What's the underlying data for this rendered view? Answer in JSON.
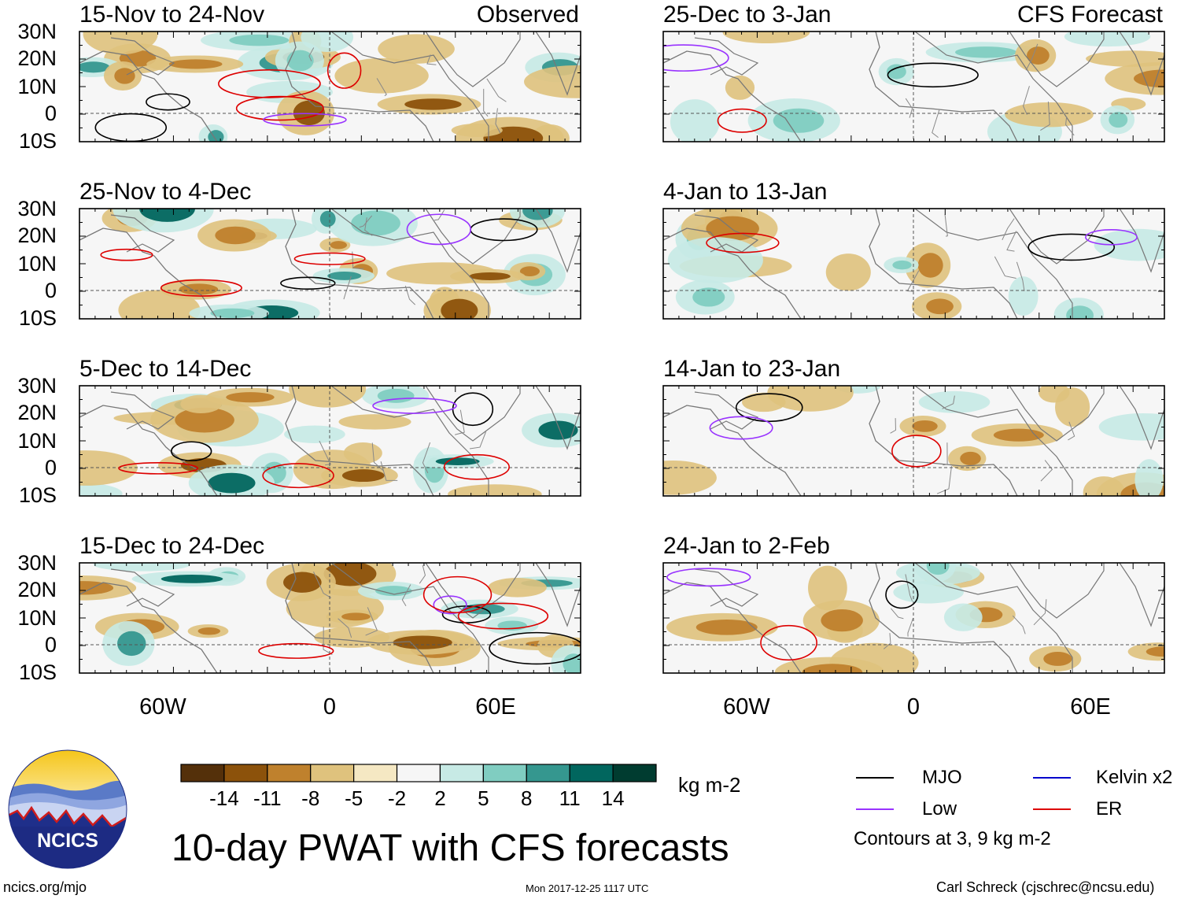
{
  "title": "10-day PWAT with CFS forecasts",
  "observed_label": "Observed",
  "forecast_label": "CFS Forecast",
  "lat_labels": [
    "30N",
    "20N",
    "10N",
    "0",
    "10S"
  ],
  "lon_labels": [
    "60W",
    "0",
    "60E"
  ],
  "panels_left": [
    {
      "period": "15-Nov to 24-Nov"
    },
    {
      "period": "25-Nov to 4-Dec"
    },
    {
      "period": "5-Dec to 14-Dec"
    },
    {
      "period": "15-Dec to 24-Dec"
    }
  ],
  "panels_right": [
    {
      "period": "25-Dec to 3-Jan"
    },
    {
      "period": "4-Jan to 13-Jan"
    },
    {
      "period": "14-Jan to 23-Jan"
    },
    {
      "period": "24-Jan to 2-Feb"
    }
  ],
  "colorbar": {
    "ticks": [
      "-14",
      "-11",
      "-8",
      "-5",
      "-2",
      "2",
      "5",
      "8",
      "11",
      "14"
    ],
    "colors": [
      "#54300a",
      "#8c520b",
      "#bf812d",
      "#dfc27d",
      "#f5e8c3",
      "#f6f6f6",
      "#c7eae5",
      "#80cdc1",
      "#35978f",
      "#01665e",
      "#003c30"
    ],
    "units": "kg m-2"
  },
  "legend": {
    "mjo": "MJO",
    "mjo_color": "#000000",
    "kelvin": "Kelvin x2",
    "kelvin_color": "#0000cc",
    "low": "Low",
    "low_color": "#9933ff",
    "er": "ER",
    "er_color": "#dd0000",
    "contours_note": "Contours at 3, 9 kg m-2"
  },
  "logo_text": "NCICS",
  "footer": {
    "left": "ncics.org/mjo",
    "center": "Mon 2017-12-25 1117 UTC",
    "right": "Carl Schreck (cjschrec@ncsu.edu)"
  }
}
